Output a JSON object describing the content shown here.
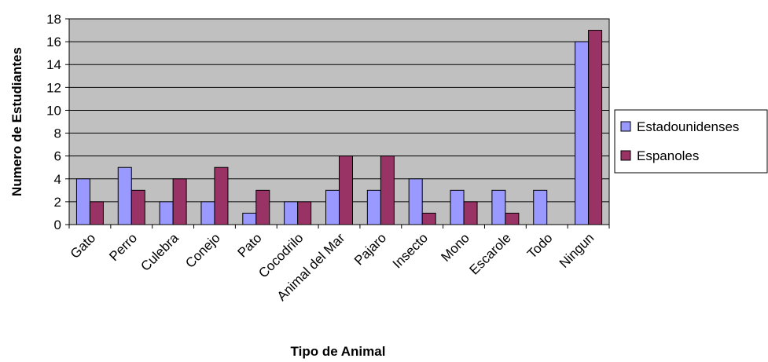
{
  "chart_data": {
    "type": "bar",
    "title": "",
    "xlabel": "Tipo de Animal",
    "ylabel": "Numero de Estudiantes",
    "categories": [
      "Gato",
      "Perro",
      "Culebra",
      "Conejo",
      "Pato",
      "Cocodrilo",
      "Animal del Mar",
      "Pajaro",
      "Insecto",
      "Mono",
      "Escarole",
      "Todo",
      "Ningun"
    ],
    "series": [
      {
        "name": "Estadounidenses",
        "color": "#9999ff",
        "values": [
          4,
          5,
          2,
          2,
          1,
          2,
          3,
          3,
          4,
          3,
          3,
          3,
          16
        ]
      },
      {
        "name": "Espanoles",
        "color": "#993366",
        "values": [
          2,
          3,
          4,
          5,
          3,
          2,
          6,
          6,
          1,
          2,
          1,
          0,
          17
        ]
      }
    ],
    "ylim": [
      0,
      18
    ],
    "yticks": [
      "0",
      "2",
      "4",
      "6",
      "8",
      "10",
      "12",
      "14",
      "16",
      "18"
    ],
    "grid": true,
    "plot_background": "#c0c0c0",
    "legend_position": "right"
  }
}
